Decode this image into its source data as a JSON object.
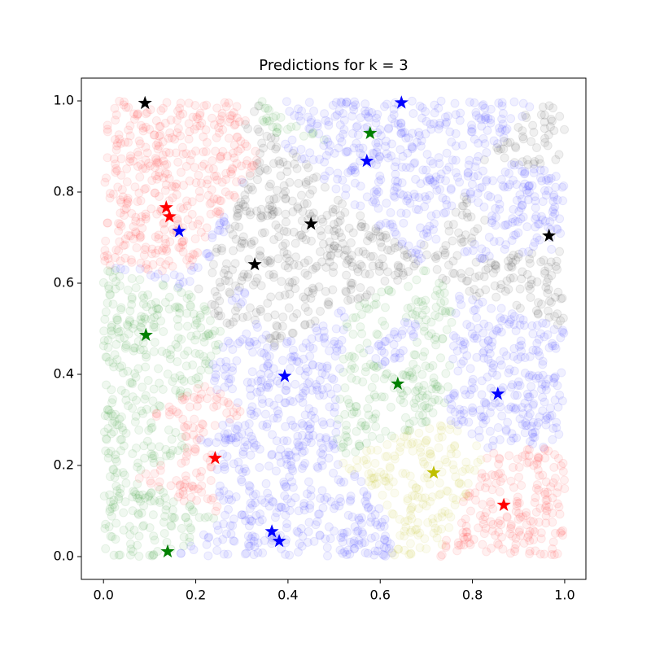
{
  "chart_data": {
    "type": "scatter",
    "title": "Predictions for k = 3",
    "k": 3,
    "xlim": [
      -0.048,
      1.046
    ],
    "ylim": [
      -0.05,
      1.05
    ],
    "xticks": [
      {
        "value": 0,
        "label": "0.0"
      },
      {
        "value": 0.2,
        "label": "0.2"
      },
      {
        "value": 0.4,
        "label": "0.4"
      },
      {
        "value": 0.6,
        "label": "0.6"
      },
      {
        "value": 0.8,
        "label": "0.8"
      },
      {
        "value": 1,
        "label": "1.0"
      }
    ],
    "yticks": [
      {
        "value": 0,
        "label": "0.0"
      },
      {
        "value": 0.2,
        "label": "0.2"
      },
      {
        "value": 0.4,
        "label": "0.4"
      },
      {
        "value": 0.6,
        "label": "0.6"
      },
      {
        "value": 0.8,
        "label": "0.8"
      },
      {
        "value": 1,
        "label": "1.0"
      }
    ],
    "series": [
      {
        "color": "#ff0000",
        "x": [
          0.136,
          0.143,
          0.242,
          0.868
        ],
        "values": [
          0.766,
          0.746,
          0.216,
          0.113
        ]
      },
      {
        "color": "#0000ff",
        "x": [
          0.646,
          0.571,
          0.164,
          0.393,
          0.855,
          0.365,
          0.381
        ],
        "values": [
          0.996,
          0.868,
          0.714,
          0.396,
          0.357,
          0.055,
          0.034
        ]
      },
      {
        "color": "#008000",
        "x": [
          0.578,
          0.092,
          0.638,
          0.139
        ],
        "values": [
          0.929,
          0.486,
          0.379,
          0.011
        ]
      },
      {
        "color": "#000000",
        "x": [
          0.09,
          0.45,
          0.966,
          0.328
        ],
        "values": [
          0.995,
          0.73,
          0.704,
          0.641
        ]
      },
      {
        "color": "#bfbf00",
        "x": [
          0.716
        ],
        "values": [
          0.184
        ]
      }
    ]
  }
}
